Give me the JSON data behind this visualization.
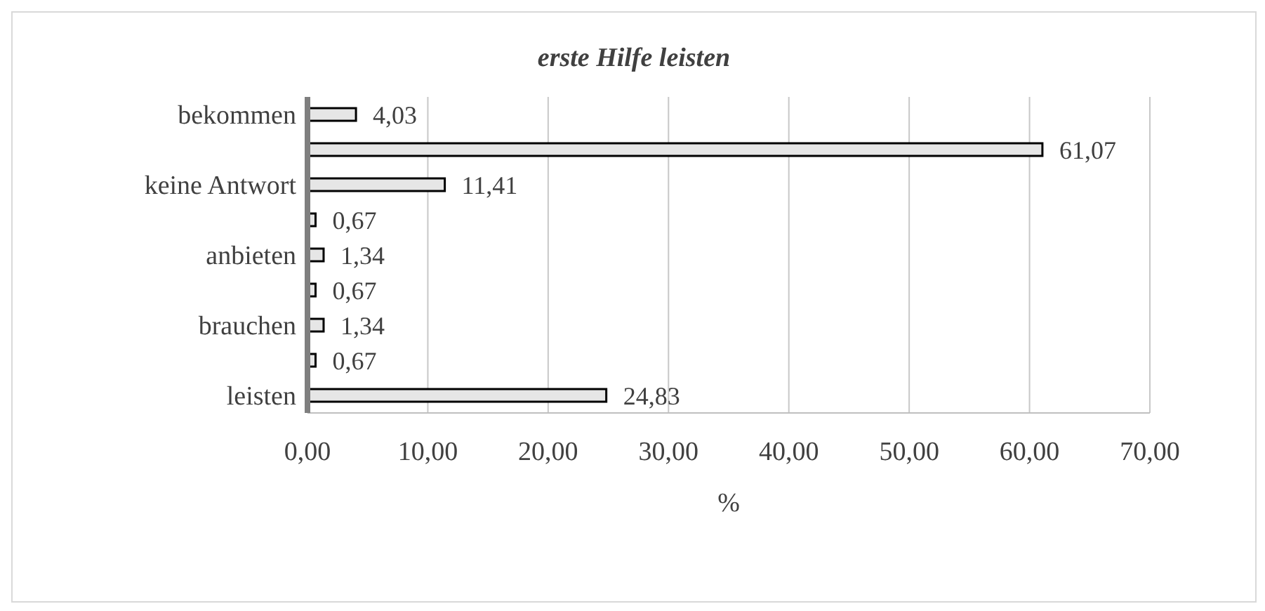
{
  "chart_data": {
    "type": "bar",
    "orientation": "horizontal",
    "title": "erste Hilfe leisten",
    "xlabel": "%",
    "categories": [
      "bekommen",
      null,
      "keine Antwort",
      null,
      "anbieten",
      null,
      "brauchen",
      null,
      "leisten"
    ],
    "values": [
      4.03,
      61.07,
      11.41,
      0.67,
      1.34,
      0.67,
      1.34,
      0.67,
      24.83
    ],
    "value_labels": [
      "4,03",
      "61,07",
      "11,41",
      "0,67",
      "1,34",
      "0,67",
      "1,34",
      "0,67",
      "24,83"
    ],
    "color": "#e6e6e6",
    "xlim": [
      0,
      70
    ],
    "xticks": [
      {
        "value": 0,
        "label": "0,00"
      },
      {
        "value": 10,
        "label": "10,00"
      },
      {
        "value": 20,
        "label": "20,00"
      },
      {
        "value": 30,
        "label": "30,00"
      },
      {
        "value": 40,
        "label": "40,00"
      },
      {
        "value": 50,
        "label": "50,00"
      },
      {
        "value": 60,
        "label": "60,00"
      },
      {
        "value": 70,
        "label": "70,00"
      }
    ],
    "grid": "x"
  }
}
